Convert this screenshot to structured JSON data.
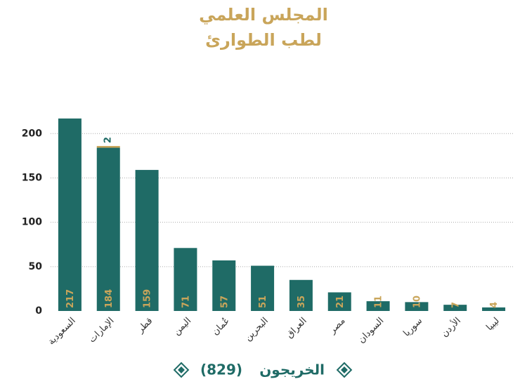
{
  "chart_data": {
    "type": "bar",
    "stacked": true,
    "title": [
      "المجلس العلمي",
      "لطب الطوارئ"
    ],
    "categories": [
      "السعودية",
      "الإمارات",
      "قطر",
      "اليمن",
      "عُمان",
      "البحرين",
      "العراق",
      "مصر",
      "السودان",
      "سوريا",
      "الأردن",
      "ليبيا"
    ],
    "series": [
      {
        "name": "الخريجون",
        "color": "#1f6b66",
        "label_color": "#c9a55a",
        "values": [
          217,
          184,
          159,
          71,
          57,
          51,
          35,
          21,
          11,
          10,
          7,
          4
        ]
      },
      {
        "color": "#c9a55a",
        "label_color": "#1f6b66",
        "values": [
          null,
          2,
          null,
          null,
          null,
          null,
          null,
          null,
          null,
          null,
          null,
          null
        ]
      }
    ],
    "legend_total": "(829)",
    "ylim": [
      0,
      220
    ],
    "yticks": [
      0,
      50,
      100,
      150,
      200
    ],
    "grid": true
  }
}
